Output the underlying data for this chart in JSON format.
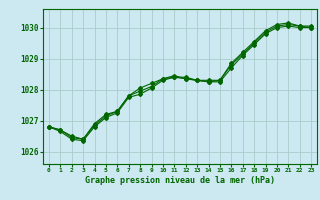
{
  "title": "Graphe pression niveau de la mer (hPa)",
  "background_color": "#cce8f0",
  "grid_color": "#aacccc",
  "line_color": "#006600",
  "marker_color": "#006600",
  "xlim": [
    -0.5,
    23.5
  ],
  "ylim": [
    1025.6,
    1030.6
  ],
  "yticks": [
    1026,
    1027,
    1028,
    1029,
    1030
  ],
  "xticks": [
    0,
    1,
    2,
    3,
    4,
    5,
    6,
    7,
    8,
    9,
    10,
    11,
    12,
    13,
    14,
    15,
    16,
    17,
    18,
    19,
    20,
    21,
    22,
    23
  ],
  "series1_x": [
    0,
    1,
    2,
    3,
    4,
    5,
    6,
    7,
    8,
    9,
    10,
    11,
    12,
    13,
    14,
    15,
    16,
    17,
    18,
    19,
    20,
    21,
    22,
    23
  ],
  "series1_y": [
    1026.8,
    1026.7,
    1026.5,
    1026.4,
    1026.9,
    1027.2,
    1027.3,
    1027.8,
    1028.05,
    1028.2,
    1028.35,
    1028.4,
    1028.4,
    1028.3,
    1028.25,
    1028.25,
    1028.7,
    1029.1,
    1029.45,
    1029.8,
    1030.0,
    1030.05,
    1030.0,
    1030.0
  ],
  "series2_x": [
    0,
    1,
    2,
    3,
    4,
    5,
    6,
    7,
    8,
    9,
    10,
    11,
    12,
    13,
    14,
    15,
    16,
    17,
    18,
    19,
    20,
    21,
    22,
    23
  ],
  "series2_y": [
    1026.8,
    1026.65,
    1026.4,
    1026.35,
    1026.8,
    1027.1,
    1027.25,
    1027.75,
    1027.85,
    1028.05,
    1028.3,
    1028.4,
    1028.35,
    1028.3,
    1028.25,
    1028.3,
    1028.8,
    1029.15,
    1029.5,
    1029.85,
    1030.05,
    1030.1,
    1030.05,
    1030.0
  ],
  "series3_x": [
    0,
    1,
    2,
    3,
    4,
    5,
    6,
    7,
    8,
    9,
    10,
    11,
    12,
    13,
    14,
    15,
    16,
    17,
    18,
    19,
    20,
    21,
    22,
    23
  ],
  "series3_y": [
    1026.8,
    1026.7,
    1026.45,
    1026.4,
    1026.85,
    1027.15,
    1027.3,
    1027.8,
    1027.95,
    1028.1,
    1028.35,
    1028.45,
    1028.35,
    1028.3,
    1028.3,
    1028.3,
    1028.85,
    1029.2,
    1029.55,
    1029.9,
    1030.1,
    1030.15,
    1030.05,
    1030.05
  ],
  "figsize": [
    3.2,
    2.0
  ],
  "dpi": 100
}
